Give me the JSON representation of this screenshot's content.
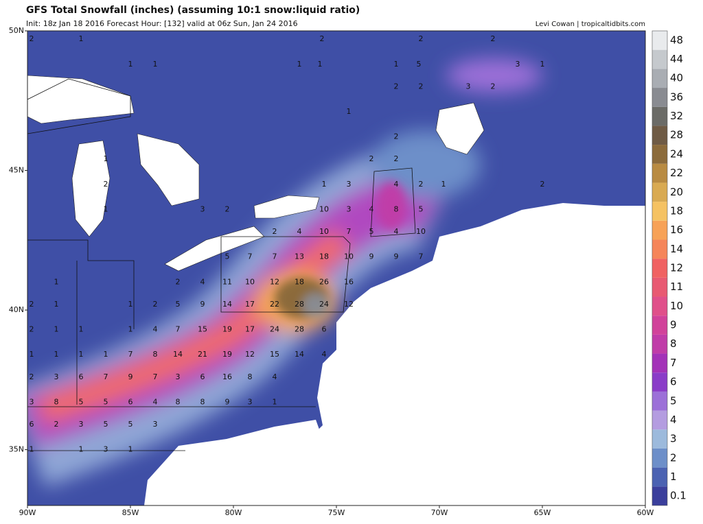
{
  "header": {
    "title": "GFS Total Snowfall (inches) (assuming 10:1 snow:liquid ratio)",
    "subtitle": "Init: 18z Jan 18 2016   Forecast Hour: [132]   valid at 06z Sun, Jan 24 2016",
    "credit": "Levi Cowan | tropicaltidbits.com"
  },
  "map": {
    "lonlim": [
      -90,
      -60
    ],
    "latlim": [
      33,
      50
    ],
    "latticks": [
      {
        "value": 50,
        "label": "50N"
      },
      {
        "value": 45,
        "label": "45N"
      },
      {
        "value": 40,
        "label": "40N"
      },
      {
        "value": 35,
        "label": "35N"
      }
    ],
    "lonticks": [
      {
        "value": -90,
        "label": "90W"
      },
      {
        "value": -85,
        "label": "85W"
      },
      {
        "value": -80,
        "label": "80W"
      },
      {
        "value": -75,
        "label": "75W"
      },
      {
        "value": -70,
        "label": "70W"
      },
      {
        "value": -65,
        "label": "65W"
      },
      {
        "value": -60,
        "label": "60W"
      }
    ],
    "labels": [
      {
        "lon": -89.8,
        "lat": 49.7,
        "value": 2
      },
      {
        "lon": -87.4,
        "lat": 49.7,
        "value": 1
      },
      {
        "lon": -75.7,
        "lat": 49.7,
        "value": 2
      },
      {
        "lon": -70.9,
        "lat": 49.7,
        "value": 2
      },
      {
        "lon": -67.4,
        "lat": 49.7,
        "value": 2
      },
      {
        "lon": -85.0,
        "lat": 48.8,
        "value": 1
      },
      {
        "lon": -83.8,
        "lat": 48.8,
        "value": 1
      },
      {
        "lon": -76.8,
        "lat": 48.8,
        "value": 1
      },
      {
        "lon": -75.8,
        "lat": 48.8,
        "value": 1
      },
      {
        "lon": -72.1,
        "lat": 48.8,
        "value": 1
      },
      {
        "lon": -71.0,
        "lat": 48.8,
        "value": 5
      },
      {
        "lon": -66.2,
        "lat": 48.8,
        "value": 3
      },
      {
        "lon": -65.0,
        "lat": 48.8,
        "value": 1
      },
      {
        "lon": -72.1,
        "lat": 48.0,
        "value": 2
      },
      {
        "lon": -70.9,
        "lat": 48.0,
        "value": 2
      },
      {
        "lon": -68.6,
        "lat": 48.0,
        "value": 3
      },
      {
        "lon": -67.4,
        "lat": 48.0,
        "value": 2
      },
      {
        "lon": -74.4,
        "lat": 47.1,
        "value": 1
      },
      {
        "lon": -72.1,
        "lat": 46.2,
        "value": 2
      },
      {
        "lon": -73.3,
        "lat": 45.4,
        "value": 2
      },
      {
        "lon": -72.1,
        "lat": 45.4,
        "value": 2
      },
      {
        "lon": -86.2,
        "lat": 45.4,
        "value": 1
      },
      {
        "lon": -86.2,
        "lat": 44.5,
        "value": 2
      },
      {
        "lon": -75.6,
        "lat": 44.5,
        "value": 1
      },
      {
        "lon": -74.4,
        "lat": 44.5,
        "value": 3
      },
      {
        "lon": -72.1,
        "lat": 44.5,
        "value": 4
      },
      {
        "lon": -70.9,
        "lat": 44.5,
        "value": 2
      },
      {
        "lon": -69.8,
        "lat": 44.5,
        "value": 1
      },
      {
        "lon": -65.0,
        "lat": 44.5,
        "value": 2
      },
      {
        "lon": -86.2,
        "lat": 43.6,
        "value": 1
      },
      {
        "lon": -81.5,
        "lat": 43.6,
        "value": 3
      },
      {
        "lon": -80.3,
        "lat": 43.6,
        "value": 2
      },
      {
        "lon": -75.6,
        "lat": 43.6,
        "value": 10
      },
      {
        "lon": -74.4,
        "lat": 43.6,
        "value": 3
      },
      {
        "lon": -73.3,
        "lat": 43.6,
        "value": 4
      },
      {
        "lon": -72.1,
        "lat": 43.6,
        "value": 8
      },
      {
        "lon": -70.9,
        "lat": 43.6,
        "value": 5
      },
      {
        "lon": -78.0,
        "lat": 42.8,
        "value": 2
      },
      {
        "lon": -76.8,
        "lat": 42.8,
        "value": 4
      },
      {
        "lon": -75.6,
        "lat": 42.8,
        "value": 10
      },
      {
        "lon": -74.4,
        "lat": 42.8,
        "value": 7
      },
      {
        "lon": -73.3,
        "lat": 42.8,
        "value": 5
      },
      {
        "lon": -72.1,
        "lat": 42.8,
        "value": 4
      },
      {
        "lon": -70.9,
        "lat": 42.8,
        "value": 10
      },
      {
        "lon": -80.3,
        "lat": 41.9,
        "value": 5
      },
      {
        "lon": -79.2,
        "lat": 41.9,
        "value": 7
      },
      {
        "lon": -78.0,
        "lat": 41.9,
        "value": 7
      },
      {
        "lon": -76.8,
        "lat": 41.9,
        "value": 13
      },
      {
        "lon": -75.6,
        "lat": 41.9,
        "value": 18
      },
      {
        "lon": -74.4,
        "lat": 41.9,
        "value": 10
      },
      {
        "lon": -73.3,
        "lat": 41.9,
        "value": 9
      },
      {
        "lon": -72.1,
        "lat": 41.9,
        "value": 9
      },
      {
        "lon": -70.9,
        "lat": 41.9,
        "value": 7
      },
      {
        "lon": -88.6,
        "lat": 41.0,
        "value": 1
      },
      {
        "lon": -82.7,
        "lat": 41.0,
        "value": 2
      },
      {
        "lon": -81.5,
        "lat": 41.0,
        "value": 4
      },
      {
        "lon": -80.3,
        "lat": 41.0,
        "value": 11
      },
      {
        "lon": -79.2,
        "lat": 41.0,
        "value": 10
      },
      {
        "lon": -78.0,
        "lat": 41.0,
        "value": 12
      },
      {
        "lon": -76.8,
        "lat": 41.0,
        "value": 18
      },
      {
        "lon": -75.6,
        "lat": 41.0,
        "value": 26
      },
      {
        "lon": -74.4,
        "lat": 41.0,
        "value": 16
      },
      {
        "lon": -89.8,
        "lat": 40.2,
        "value": 2
      },
      {
        "lon": -88.6,
        "lat": 40.2,
        "value": 1
      },
      {
        "lon": -85.0,
        "lat": 40.2,
        "value": 1
      },
      {
        "lon": -83.8,
        "lat": 40.2,
        "value": 2
      },
      {
        "lon": -82.7,
        "lat": 40.2,
        "value": 5
      },
      {
        "lon": -81.5,
        "lat": 40.2,
        "value": 9
      },
      {
        "lon": -80.3,
        "lat": 40.2,
        "value": 14
      },
      {
        "lon": -79.2,
        "lat": 40.2,
        "value": 17
      },
      {
        "lon": -78.0,
        "lat": 40.2,
        "value": 22
      },
      {
        "lon": -76.8,
        "lat": 40.2,
        "value": 28
      },
      {
        "lon": -75.6,
        "lat": 40.2,
        "value": 24
      },
      {
        "lon": -74.4,
        "lat": 40.2,
        "value": 12
      },
      {
        "lon": -89.8,
        "lat": 39.3,
        "value": 2
      },
      {
        "lon": -88.6,
        "lat": 39.3,
        "value": 1
      },
      {
        "lon": -87.4,
        "lat": 39.3,
        "value": 1
      },
      {
        "lon": -85.0,
        "lat": 39.3,
        "value": 1
      },
      {
        "lon": -83.8,
        "lat": 39.3,
        "value": 4
      },
      {
        "lon": -82.7,
        "lat": 39.3,
        "value": 7
      },
      {
        "lon": -81.5,
        "lat": 39.3,
        "value": 15
      },
      {
        "lon": -80.3,
        "lat": 39.3,
        "value": 19
      },
      {
        "lon": -79.2,
        "lat": 39.3,
        "value": 17
      },
      {
        "lon": -78.0,
        "lat": 39.3,
        "value": 24
      },
      {
        "lon": -76.8,
        "lat": 39.3,
        "value": 28
      },
      {
        "lon": -75.6,
        "lat": 39.3,
        "value": 6
      },
      {
        "lon": -89.8,
        "lat": 38.4,
        "value": 1
      },
      {
        "lon": -88.6,
        "lat": 38.4,
        "value": 1
      },
      {
        "lon": -87.4,
        "lat": 38.4,
        "value": 1
      },
      {
        "lon": -86.2,
        "lat": 38.4,
        "value": 1
      },
      {
        "lon": -85.0,
        "lat": 38.4,
        "value": 7
      },
      {
        "lon": -83.8,
        "lat": 38.4,
        "value": 8
      },
      {
        "lon": -82.7,
        "lat": 38.4,
        "value": 14
      },
      {
        "lon": -81.5,
        "lat": 38.4,
        "value": 21
      },
      {
        "lon": -80.3,
        "lat": 38.4,
        "value": 19
      },
      {
        "lon": -79.2,
        "lat": 38.4,
        "value": 12
      },
      {
        "lon": -78.0,
        "lat": 38.4,
        "value": 15
      },
      {
        "lon": -76.8,
        "lat": 38.4,
        "value": 14
      },
      {
        "lon": -75.6,
        "lat": 38.4,
        "value": 4
      },
      {
        "lon": -89.8,
        "lat": 37.6,
        "value": 2
      },
      {
        "lon": -88.6,
        "lat": 37.6,
        "value": 3
      },
      {
        "lon": -87.4,
        "lat": 37.6,
        "value": 6
      },
      {
        "lon": -86.2,
        "lat": 37.6,
        "value": 7
      },
      {
        "lon": -85.0,
        "lat": 37.6,
        "value": 9
      },
      {
        "lon": -83.8,
        "lat": 37.6,
        "value": 7
      },
      {
        "lon": -82.7,
        "lat": 37.6,
        "value": 3
      },
      {
        "lon": -81.5,
        "lat": 37.6,
        "value": 6
      },
      {
        "lon": -80.3,
        "lat": 37.6,
        "value": 16
      },
      {
        "lon": -79.2,
        "lat": 37.6,
        "value": 8
      },
      {
        "lon": -78.0,
        "lat": 37.6,
        "value": 4
      },
      {
        "lon": -89.8,
        "lat": 36.7,
        "value": 3
      },
      {
        "lon": -88.6,
        "lat": 36.7,
        "value": 8
      },
      {
        "lon": -87.4,
        "lat": 36.7,
        "value": 5
      },
      {
        "lon": -86.2,
        "lat": 36.7,
        "value": 5
      },
      {
        "lon": -85.0,
        "lat": 36.7,
        "value": 6
      },
      {
        "lon": -83.8,
        "lat": 36.7,
        "value": 4
      },
      {
        "lon": -82.7,
        "lat": 36.7,
        "value": 8
      },
      {
        "lon": -81.5,
        "lat": 36.7,
        "value": 8
      },
      {
        "lon": -80.3,
        "lat": 36.7,
        "value": 9
      },
      {
        "lon": -79.2,
        "lat": 36.7,
        "value": 3
      },
      {
        "lon": -78.0,
        "lat": 36.7,
        "value": 1
      },
      {
        "lon": -89.8,
        "lat": 35.9,
        "value": 6
      },
      {
        "lon": -88.6,
        "lat": 35.9,
        "value": 2
      },
      {
        "lon": -87.4,
        "lat": 35.9,
        "value": 3
      },
      {
        "lon": -86.2,
        "lat": 35.9,
        "value": 5
      },
      {
        "lon": -85.0,
        "lat": 35.9,
        "value": 5
      },
      {
        "lon": -83.8,
        "lat": 35.9,
        "value": 3
      },
      {
        "lon": -89.8,
        "lat": 35.0,
        "value": 1
      },
      {
        "lon": -87.4,
        "lat": 35.0,
        "value": 1
      },
      {
        "lon": -86.2,
        "lat": 35.0,
        "value": 3
      },
      {
        "lon": -85.0,
        "lat": 35.0,
        "value": 1
      }
    ]
  },
  "colorbar": {
    "levels": [
      {
        "value": 0.1,
        "color": "#3b3f9c"
      },
      {
        "value": 1,
        "color": "#4b62b2"
      },
      {
        "value": 2,
        "color": "#6d8fc9"
      },
      {
        "value": 3,
        "color": "#9cbadc"
      },
      {
        "value": 4,
        "color": "#b49ce0"
      },
      {
        "value": 5,
        "color": "#9c70d8"
      },
      {
        "value": 6,
        "color": "#8a3cc8"
      },
      {
        "value": 7,
        "color": "#a332b8"
      },
      {
        "value": 8,
        "color": "#c03ca8"
      },
      {
        "value": 9,
        "color": "#d1429a"
      },
      {
        "value": 10,
        "color": "#e0508a"
      },
      {
        "value": 11,
        "color": "#e85a72"
      },
      {
        "value": 12,
        "color": "#f06262"
      },
      {
        "value": 14,
        "color": "#f5855a"
      },
      {
        "value": 16,
        "color": "#f7a257"
      },
      {
        "value": 18,
        "color": "#f5c262"
      },
      {
        "value": 20,
        "color": "#d9aa52"
      },
      {
        "value": 22,
        "color": "#b98b42"
      },
      {
        "value": 24,
        "color": "#8c6b3b"
      },
      {
        "value": 28,
        "color": "#6f5b45"
      },
      {
        "value": 32,
        "color": "#6b6b67"
      },
      {
        "value": 36,
        "color": "#898b91"
      },
      {
        "value": 40,
        "color": "#a9adb3"
      },
      {
        "value": 44,
        "color": "#c5c9cd"
      },
      {
        "value": 48,
        "color": "#e9ebed"
      }
    ]
  }
}
